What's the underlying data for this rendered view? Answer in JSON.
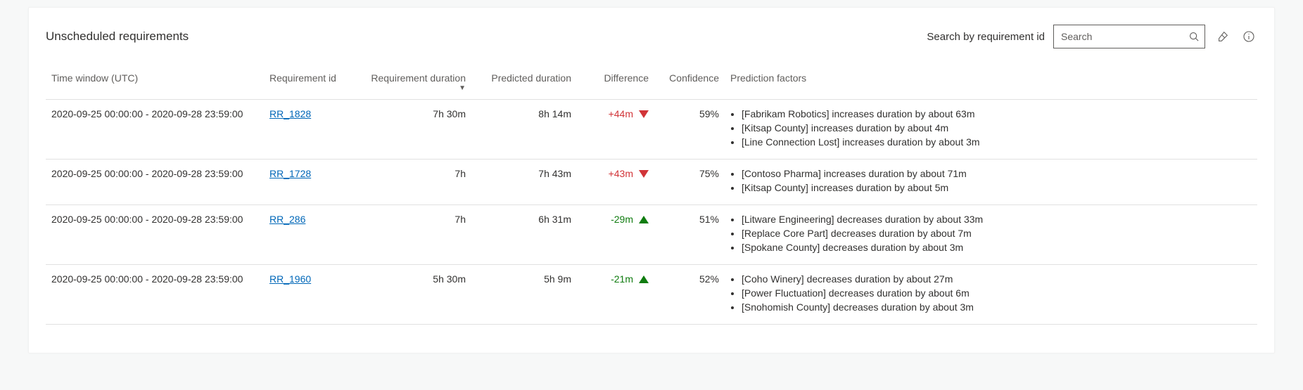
{
  "title": "Unscheduled requirements",
  "search": {
    "label": "Search by requirement id",
    "placeholder": "Search"
  },
  "columns": {
    "time": "Time window (UTC)",
    "req": "Requirement id",
    "dur": "Requirement duration",
    "pred": "Predicted duration",
    "diff": "Difference",
    "conf": "Confidence",
    "factors": "Prediction factors"
  },
  "colors": {
    "positive": "#d13438",
    "negative": "#107c10",
    "link": "#0067b8",
    "text": "#323130",
    "muted": "#605e5c",
    "border": "#e1e1e1",
    "panel_bg": "#ffffff",
    "page_bg": "#f7f8f8"
  },
  "rows": [
    {
      "time": "2020-09-25 00:00:00 - 2020-09-28 23:59:00",
      "req": "RR_1828",
      "dur": "7h 30m",
      "pred": "8h 14m",
      "diff": "+44m",
      "direction": "down",
      "conf": "59%",
      "factors": [
        "[Fabrikam Robotics] increases duration by about 63m",
        "[Kitsap County] increases duration by about 4m",
        "[Line Connection Lost] increases duration by about 3m"
      ]
    },
    {
      "time": "2020-09-25 00:00:00 - 2020-09-28 23:59:00",
      "req": "RR_1728",
      "dur": "7h",
      "pred": "7h 43m",
      "diff": "+43m",
      "direction": "down",
      "conf": "75%",
      "factors": [
        "[Contoso Pharma] increases duration by about 71m",
        "[Kitsap County] increases duration by about 5m"
      ]
    },
    {
      "time": "2020-09-25 00:00:00 - 2020-09-28 23:59:00",
      "req": "RR_286",
      "dur": "7h",
      "pred": "6h 31m",
      "diff": "-29m",
      "direction": "up",
      "conf": "51%",
      "factors": [
        "[Litware Engineering] decreases duration by about 33m",
        "[Replace Core Part] decreases duration by about 7m",
        "[Spokane County] decreases duration by about 3m"
      ]
    },
    {
      "time": "2020-09-25 00:00:00 - 2020-09-28 23:59:00",
      "req": "RR_1960",
      "dur": "5h 30m",
      "pred": "5h 9m",
      "diff": "-21m",
      "direction": "up",
      "conf": "52%",
      "factors": [
        "[Coho Winery] decreases duration by about 27m",
        "[Power Fluctuation] decreases duration by about 6m",
        "[Snohomish County] decreases duration by about 3m"
      ]
    }
  ]
}
